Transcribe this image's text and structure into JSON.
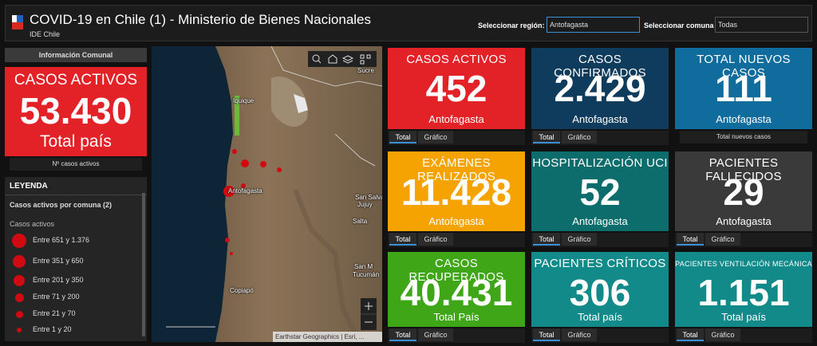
{
  "header": {
    "title": "COVID-19 en Chile (1) - Ministerio de Bienes Nacionales",
    "subtitle": "IDE Chile",
    "region_label": "Seleccionar región:",
    "region_value": "Antofagasta",
    "comuna_label": "Seleccionar comuna",
    "comuna_value": "Todas"
  },
  "left": {
    "tab": "Información Comunal",
    "card": {
      "title": "CASOS ACTIVOS",
      "value": "53.430",
      "subtitle": "Total país"
    },
    "nav": "Nº casos activos"
  },
  "legend": {
    "title": "LEYENDA",
    "layer": "Casos activos por comuna (2)",
    "field": "Casos activos",
    "items": [
      "Entre 651 y 1.376",
      "Entre 351 y 650",
      "Entre 201 y 350",
      "Entre 71 y 200",
      "Entre 21 y 70",
      "Entre 1 y 20"
    ]
  },
  "map": {
    "labels": [
      "Sucre",
      "Iquique",
      "Antofagasta",
      "San Salvad",
      "Jujuy",
      "Salta",
      "San M",
      "Tucumán",
      "Copiapó"
    ],
    "attribution": "Earthstar Geographics | Esri, ..."
  },
  "cards": [
    {
      "title": "CASOS ACTIVOS",
      "value": "452",
      "subtitle": "Antofagasta",
      "tabs": [
        "Total",
        "Gráfico"
      ]
    },
    {
      "title": "CASOS CONFIRMADOS",
      "value": "2.429",
      "subtitle": "Antofagasta",
      "tabs": [
        "Total",
        "Gráfico"
      ]
    },
    {
      "title": "TOTAL NUEVOS CASOS",
      "value": "111",
      "subtitle": "Antofagasta",
      "nav": "Total nuevos casos"
    },
    {
      "title": "EXÁMENES REALIZADOS",
      "value": "11.428",
      "subtitle": "Antofagasta",
      "tabs": [
        "Total",
        "Gráfico"
      ]
    },
    {
      "title": "HOSPITALIZACIÓN UCI",
      "value": "52",
      "subtitle": "Antofagasta",
      "tabs": [
        "Total",
        "Gráfico"
      ]
    },
    {
      "title": "PACIENTES FALLECIDOS",
      "value": "29",
      "subtitle": "Antofagasta",
      "tabs": [
        "Total",
        "Gráfico"
      ]
    },
    {
      "title": "CASOS RECUPERADOS",
      "value": "40.431",
      "subtitle": "Total País",
      "tabs": [
        "Total",
        "Gráfico"
      ]
    },
    {
      "title": "PACIENTES CRÍTICOS",
      "value": "306",
      "subtitle": "Total país",
      "tabs": [
        "Total",
        "Gráfico"
      ]
    },
    {
      "title": "PACIENTES VENTILACIÓN MECÁNICA",
      "value": "1.151",
      "subtitle": "Total país",
      "tabs": [
        "Total",
        "Gráfico"
      ]
    }
  ]
}
